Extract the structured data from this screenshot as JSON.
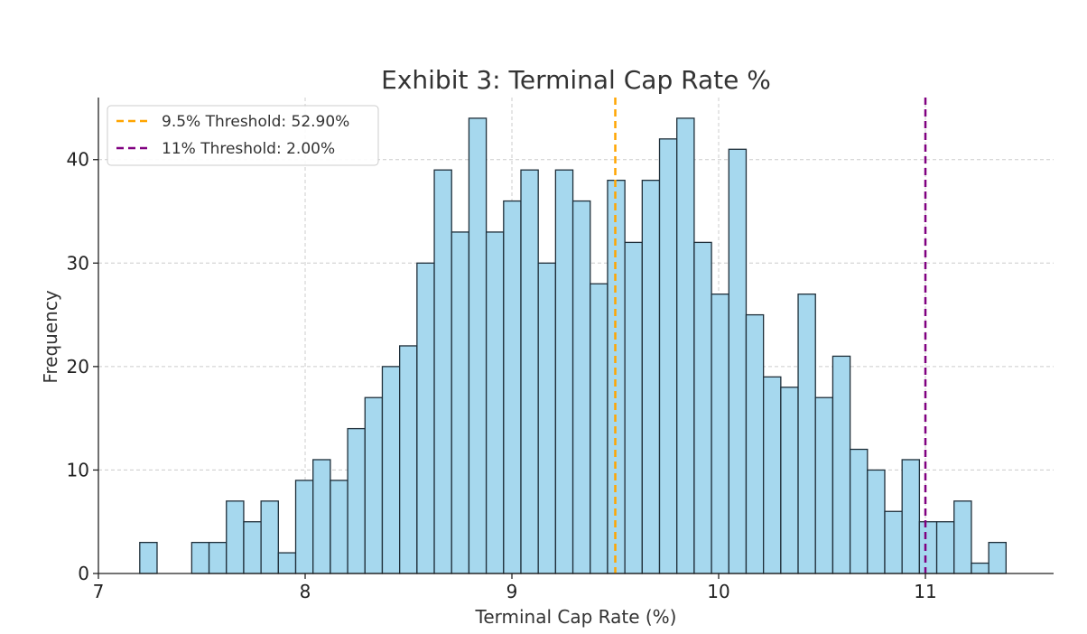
{
  "chart_data": {
    "type": "bar",
    "title": "Exhibit 3: Terminal Cap Rate %",
    "xlabel": "Terminal Cap Rate (%)",
    "ylabel": "Frequency",
    "xlim": [
      7,
      11.62
    ],
    "ylim": [
      0,
      46
    ],
    "x_ticks": [
      7,
      8,
      9,
      10,
      11
    ],
    "y_ticks": [
      0,
      10,
      20,
      30,
      40
    ],
    "grid": true,
    "legend_position": "top-left",
    "bins": {
      "start": 7.2,
      "width": 0.0838,
      "counts": [
        3,
        0,
        0,
        3,
        3,
        7,
        5,
        7,
        2,
        9,
        11,
        9,
        14,
        17,
        20,
        22,
        30,
        39,
        33,
        44,
        33,
        36,
        39,
        30,
        39,
        36,
        28,
        38,
        32,
        38,
        42,
        44,
        32,
        27,
        41,
        25,
        19,
        18,
        27,
        17,
        21,
        12,
        10,
        6,
        11,
        5,
        5,
        7,
        1,
        3
      ]
    },
    "reference_lines": [
      {
        "x": 9.5,
        "label": "9.5% Threshold: 52.90%",
        "color": "#ffa500"
      },
      {
        "x": 11.0,
        "label": "11% Threshold: 2.00%",
        "color": "#800080"
      }
    ],
    "colors": {
      "bar_fill": "#a6d8ee",
      "bar_edge": "#1f2f3a"
    }
  }
}
